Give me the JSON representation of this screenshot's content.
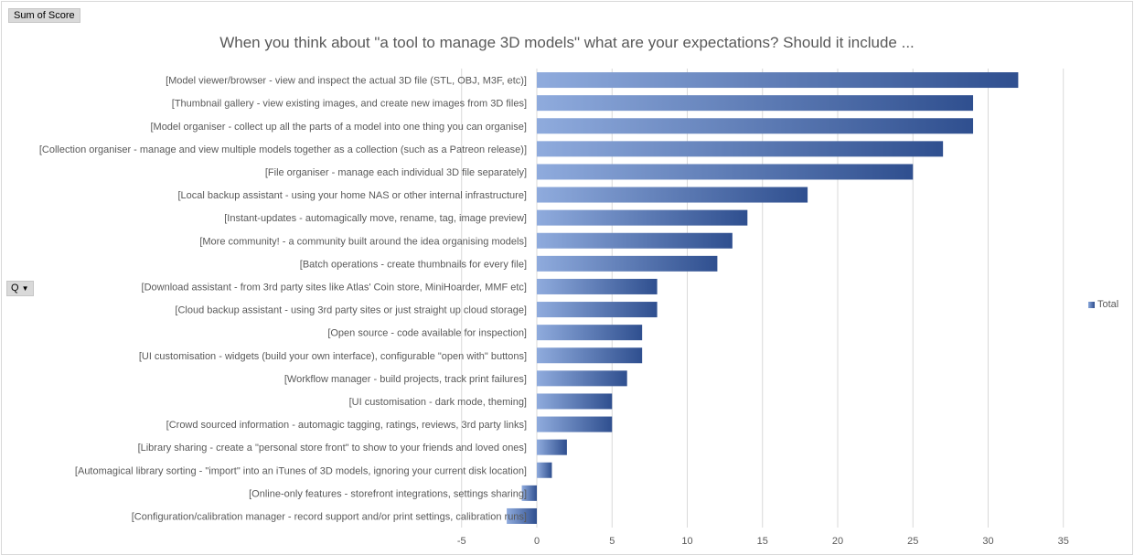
{
  "pivot": {
    "value_field": "Sum of Score",
    "row_field": "Q"
  },
  "colors": {
    "bar_light": "#8fabdd",
    "bar_dark": "#2f4f8f",
    "gridline": "#d9d9d9",
    "text": "#595959"
  },
  "chart_data": {
    "type": "bar",
    "orientation": "horizontal",
    "title": "When you think about \"a tool to manage 3D models\" what are your expectations? Should it include ...",
    "categories": [
      "[Model viewer/browser - view and inspect the actual 3D file (STL, OBJ, M3F, etc)]",
      "[Thumbnail gallery - view existing images, and create new images from 3D files]",
      "[Model organiser - collect up all the parts of a model into one thing you can organise]",
      "[Collection organiser - manage and view multiple models together as a collection (such as a Patreon release)]",
      "[File organiser - manage each individual 3D file separately]",
      "[Local backup assistant - using your home NAS or other internal infrastructure]",
      "[Instant-updates - automagically move, rename, tag, image preview]",
      "[More community! - a community built around the idea organising models]",
      "[Batch operations - create thumbnails for every file]",
      "[Download assistant - from 3rd party sites like Atlas' Coin store, MiniHoarder, MMF etc]",
      "[Cloud backup assistant - using 3rd party sites or just straight up cloud storage]",
      "[Open source - code available for inspection]",
      "[UI customisation - widgets (build your own interface), configurable \"open with\" buttons]",
      "[Workflow manager - build projects, track print failures]",
      "[UI customisation - dark mode, theming]",
      "[Crowd sourced information - automagic tagging, ratings, reviews, 3rd party links]",
      "[Library sharing - create a \"personal store front\" to show to your friends and loved ones]",
      "[Automagical library sorting - \"import\" into an iTunes of 3D models, ignoring your current disk location]",
      "[Online-only features - storefront integrations, settings sharing]",
      "[Configuration/calibration manager - record support and/or print settings, calibration runs]"
    ],
    "series": [
      {
        "name": "Total",
        "values": [
          32,
          29,
          29,
          27,
          25,
          18,
          14,
          13,
          12,
          8,
          8,
          7,
          7,
          6,
          5,
          5,
          2,
          1,
          -1,
          -2
        ]
      }
    ],
    "xlim": [
      -5,
      35
    ],
    "xticks": [
      -5,
      0,
      5,
      10,
      15,
      20,
      25,
      30,
      35
    ],
    "grid": true,
    "legend": "right"
  }
}
